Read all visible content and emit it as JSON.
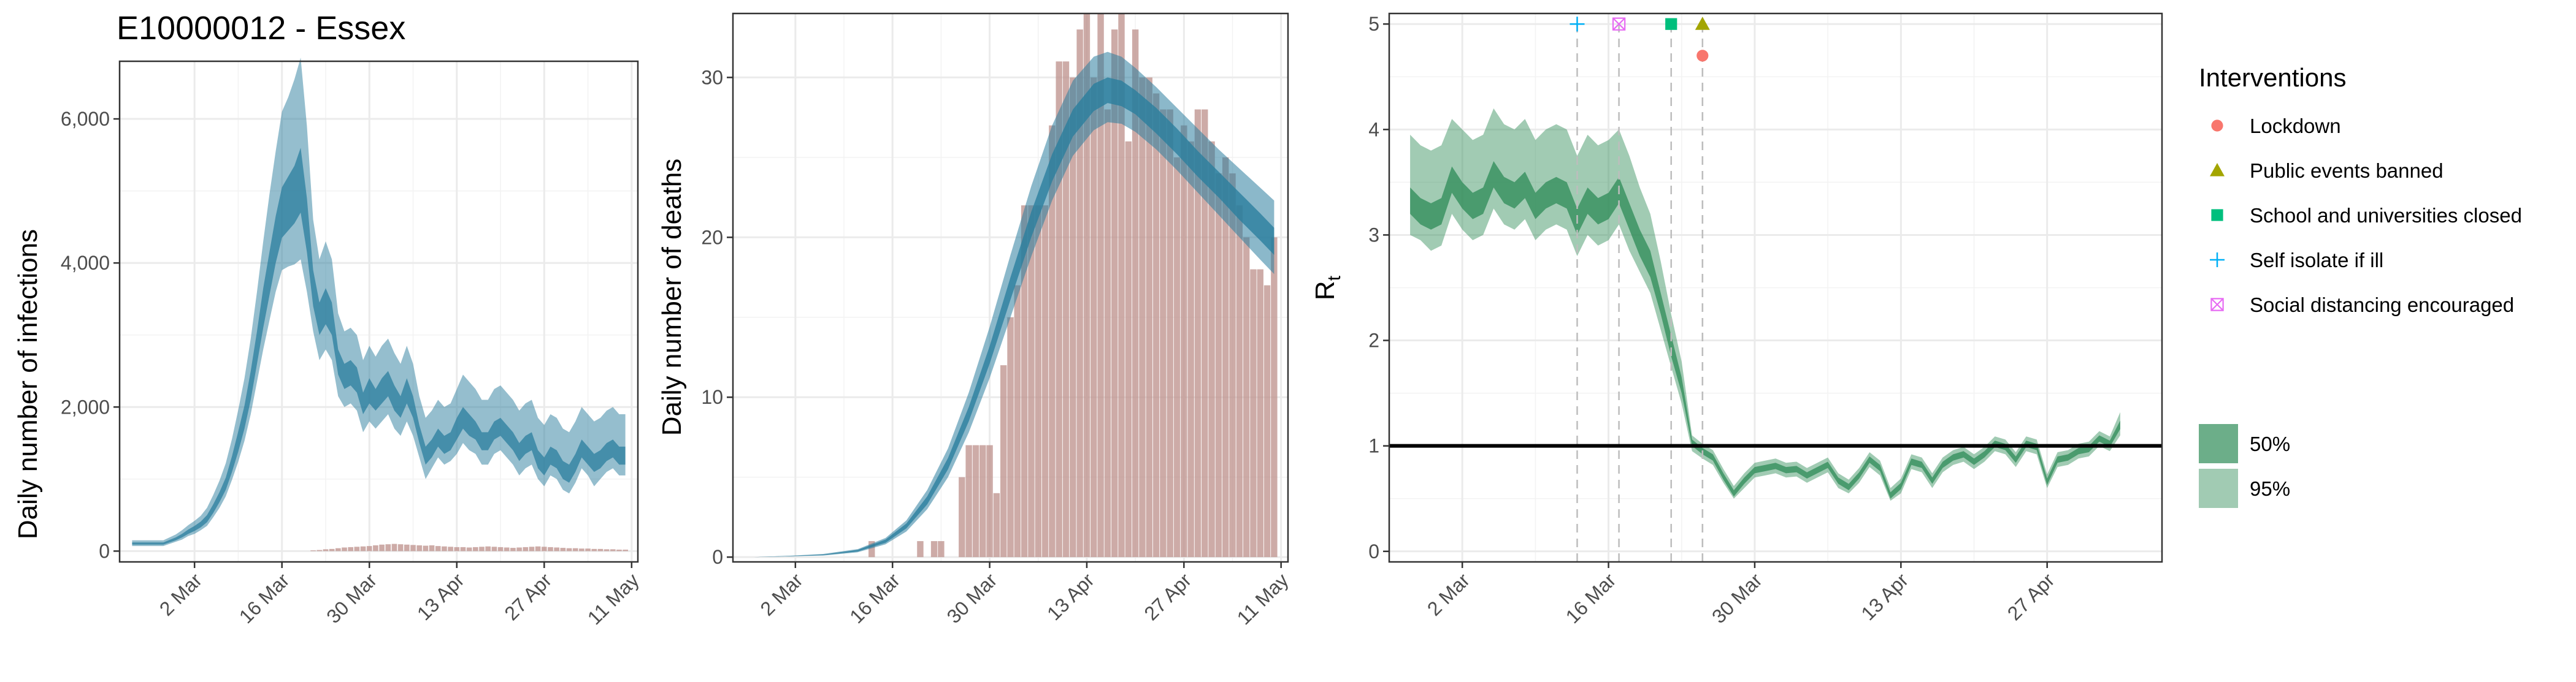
{
  "title": "E10000012 - Essex",
  "colors": {
    "infections_band": "#2b7e9e",
    "deaths_bar": "#bc8f8a",
    "rt_band": "#2e8b57",
    "lockdown": "#f8766d",
    "public_events": "#a3a500",
    "school": "#00bf7d",
    "self_isolate": "#00b0f6",
    "social_distancing": "#e76bf3"
  },
  "chart_data": [
    {
      "type": "area",
      "id": "infections",
      "ylabel": "Daily number of infections",
      "xlabel": "",
      "x_ticks": [
        "2 Mar",
        "16 Mar",
        "30 Mar",
        "13 Apr",
        "27 Apr",
        "11 May"
      ],
      "x_tick_days": [
        1,
        15,
        29,
        43,
        57,
        71
      ],
      "x_range_days": [
        -11,
        72
      ],
      "y_ticks": [
        "0",
        "2,000",
        "4,000",
        "6,000"
      ],
      "y_tick_values": [
        0,
        2000,
        4000,
        6000
      ],
      "ylim": [
        -150,
        6800
      ],
      "x_days": [
        -9,
        -5,
        -4,
        -2,
        -1,
        0,
        1,
        2,
        3,
        4,
        5,
        6,
        7,
        8,
        9,
        10,
        11,
        12,
        13,
        14,
        15,
        16,
        17,
        18,
        19,
        20,
        21,
        22,
        23,
        24,
        25,
        26,
        27,
        28,
        29,
        30,
        31,
        32,
        33,
        34,
        35,
        36,
        37,
        38,
        39,
        40,
        41,
        42,
        43,
        44,
        45,
        46,
        47,
        48,
        49,
        50,
        51,
        52,
        53,
        54,
        55,
        56,
        57,
        58,
        59,
        60,
        61,
        62,
        63,
        64,
        65,
        66,
        67,
        68,
        69,
        70
      ],
      "band95_low": [
        70,
        70,
        70,
        130,
        160,
        210,
        240,
        290,
        350,
        470,
        600,
        760,
        990,
        1240,
        1530,
        1900,
        2350,
        2800,
        3200,
        3600,
        3900,
        3950,
        3980,
        4050,
        3600,
        3050,
        2650,
        2800,
        2650,
        2150,
        2000,
        2050,
        1950,
        1650,
        1800,
        1700,
        1800,
        1900,
        1700,
        1600,
        1800,
        1600,
        1300,
        1000,
        1150,
        1300,
        1200,
        1250,
        1350,
        1500,
        1400,
        1350,
        1200,
        1200,
        1350,
        1400,
        1300,
        1200,
        1050,
        1150,
        1200,
        1000,
        900,
        1050,
        1000,
        850,
        800,
        950,
        1150,
        1050,
        900,
        1000,
        1100,
        1150,
        1050,
        1050
      ],
      "band50_low": [
        90,
        90,
        90,
        150,
        190,
        240,
        280,
        330,
        400,
        530,
        680,
        850,
        1100,
        1380,
        1700,
        2100,
        2600,
        3100,
        3550,
        4000,
        4350,
        4450,
        4550,
        4700,
        4150,
        3400,
        3000,
        3150,
        3000,
        2450,
        2250,
        2300,
        2200,
        1900,
        2050,
        1950,
        2050,
        2150,
        1950,
        1850,
        2050,
        1850,
        1500,
        1200,
        1300,
        1450,
        1350,
        1400,
        1550,
        1700,
        1600,
        1550,
        1400,
        1400,
        1550,
        1600,
        1500,
        1400,
        1250,
        1350,
        1400,
        1150,
        1050,
        1200,
        1150,
        1000,
        950,
        1100,
        1300,
        1200,
        1100,
        1150,
        1250,
        1300,
        1200,
        1200
      ],
      "band50_high": [
        120,
        120,
        120,
        190,
        240,
        300,
        350,
        410,
        500,
        650,
        820,
        1020,
        1320,
        1660,
        2020,
        2500,
        3050,
        3650,
        4150,
        4650,
        5050,
        5200,
        5350,
        5600,
        4900,
        3900,
        3450,
        3650,
        3450,
        2800,
        2600,
        2650,
        2550,
        2200,
        2400,
        2250,
        2400,
        2500,
        2300,
        2150,
        2400,
        2150,
        1750,
        1450,
        1550,
        1700,
        1600,
        1650,
        1850,
        2000,
        1900,
        1800,
        1650,
        1650,
        1800,
        1850,
        1750,
        1650,
        1500,
        1600,
        1650,
        1400,
        1300,
        1450,
        1400,
        1250,
        1200,
        1350,
        1550,
        1450,
        1350,
        1400,
        1500,
        1550,
        1450,
        1450
      ],
      "band95_high": [
        150,
        150,
        150,
        230,
        290,
        360,
        420,
        490,
        600,
        780,
        980,
        1220,
        1560,
        1960,
        2400,
        2950,
        3600,
        4300,
        4950,
        5550,
        6100,
        6300,
        6550,
        6850,
        5900,
        4600,
        4050,
        4300,
        4050,
        3300,
        3050,
        3100,
        3000,
        2650,
        2850,
        2700,
        2850,
        2950,
        2750,
        2600,
        2850,
        2600,
        2150,
        1850,
        1950,
        2100,
        2000,
        2050,
        2250,
        2450,
        2350,
        2250,
        2100,
        2100,
        2250,
        2300,
        2200,
        2100,
        1950,
        2050,
        2100,
        1850,
        1750,
        1900,
        1850,
        1700,
        1650,
        1800,
        2000,
        1900,
        1800,
        1850,
        1950,
        2000,
        1900,
        1900
      ],
      "observed_days": [
        20,
        21,
        22,
        23,
        24,
        25,
        26,
        27,
        28,
        29,
        30,
        31,
        32,
        33,
        34,
        35,
        36,
        37,
        38,
        39,
        40,
        41,
        42,
        43,
        44,
        45,
        46,
        47,
        48,
        49,
        50,
        51,
        52,
        53,
        54,
        55,
        56,
        57,
        58,
        59,
        60,
        61,
        62,
        63,
        64,
        65,
        66,
        67,
        68,
        69,
        70
      ],
      "observed_values": [
        10,
        15,
        25,
        30,
        40,
        50,
        55,
        60,
        65,
        70,
        80,
        90,
        95,
        100,
        95,
        90,
        85,
        80,
        75,
        80,
        70,
        65,
        60,
        55,
        55,
        50,
        55,
        60,
        65,
        60,
        55,
        50,
        45,
        50,
        55,
        60,
        65,
        60,
        55,
        50,
        45,
        40,
        40,
        35,
        35,
        30,
        30,
        25,
        25,
        20,
        20
      ]
    },
    {
      "type": "bar",
      "id": "deaths",
      "ylabel": "Daily number of deaths",
      "xlabel": "",
      "x_ticks": [
        "2 Mar",
        "16 Mar",
        "30 Mar",
        "13 Apr",
        "27 Apr",
        "11 May"
      ],
      "x_tick_days": [
        1,
        15,
        29,
        43,
        57,
        71
      ],
      "x_range_days": [
        -8,
        72
      ],
      "y_ticks": [
        "0",
        "10",
        "20",
        "30"
      ],
      "y_tick_values": [
        0,
        10,
        20,
        30
      ],
      "ylim": [
        -0.3,
        34
      ],
      "bar_days": [
        12,
        13,
        14,
        15,
        16,
        17,
        18,
        19,
        20,
        21,
        22,
        23,
        24,
        25,
        26,
        27,
        28,
        29,
        30,
        31,
        32,
        33,
        34,
        35,
        36,
        37,
        38,
        39,
        40,
        41,
        42,
        43,
        44,
        45,
        46,
        47,
        48,
        49,
        50,
        51,
        52,
        53,
        54,
        55,
        56,
        57,
        58,
        59,
        60,
        61,
        62,
        63,
        64,
        65,
        66,
        67,
        68,
        69,
        70
      ],
      "bar_values": [
        1,
        0,
        0,
        0,
        0,
        0,
        0,
        1,
        0,
        1,
        1,
        0,
        0,
        5,
        7,
        7,
        7,
        7,
        4,
        12,
        15,
        17,
        22,
        22,
        22,
        22,
        27,
        31,
        31,
        30,
        33,
        34,
        30,
        34,
        28,
        33,
        34,
        26,
        33,
        30,
        30,
        29,
        28,
        28,
        25,
        27,
        26,
        28,
        28,
        26,
        24,
        25,
        24,
        22,
        20,
        18,
        18,
        17,
        20
      ],
      "band_days": [
        -5,
        0,
        5,
        10,
        14,
        17,
        20,
        23,
        26,
        29,
        32,
        35,
        38,
        41,
        44,
        46,
        48,
        50,
        53,
        56,
        59,
        62,
        65,
        68,
        70
      ],
      "band95_low": [
        0,
        0.05,
        0.1,
        0.3,
        0.8,
        1.6,
        3,
        5,
        7.8,
        11.2,
        15,
        18.8,
        22.3,
        25.1,
        26.7,
        27.2,
        27.1,
        26.6,
        25.5,
        24.2,
        22.8,
        21.4,
        20,
        18.6,
        17.7
      ],
      "band50_low": [
        0,
        0.05,
        0.12,
        0.35,
        0.9,
        1.8,
        3.3,
        5.5,
        8.5,
        12.1,
        16.1,
        20,
        23.5,
        26.3,
        27.9,
        28.4,
        28.2,
        27.7,
        26.5,
        25.2,
        23.8,
        22.5,
        21.1,
        19.8,
        18.9
      ],
      "band50_high": [
        0,
        0.07,
        0.16,
        0.45,
        1.1,
        2.1,
        3.8,
        6.2,
        9.4,
        13.2,
        17.5,
        21.6,
        25.2,
        28,
        29.6,
        30,
        29.8,
        29.2,
        28.1,
        26.8,
        25.4,
        24.1,
        22.8,
        21.5,
        20.6
      ],
      "band95_high": [
        0,
        0.08,
        0.2,
        0.5,
        1.2,
        2.3,
        4.2,
        6.8,
        10.3,
        14.4,
        18.9,
        23.2,
        27,
        29.8,
        31.3,
        31.6,
        31.3,
        30.6,
        29.4,
        28.1,
        26.8,
        25.5,
        24.3,
        23.1,
        22.3
      ]
    },
    {
      "type": "area",
      "id": "rt",
      "ylabel": "R",
      "ylabel_sub": "t",
      "xlabel": "",
      "x_ticks": [
        "2 Mar",
        "16 Mar",
        "30 Mar",
        "13 Apr",
        "27 Apr"
      ],
      "x_tick_days": [
        1,
        15,
        29,
        43,
        57
      ],
      "x_range_days": [
        -6,
        68
      ],
      "y_ticks": [
        "0",
        "1",
        "2",
        "3",
        "4",
        "5"
      ],
      "y_tick_values": [
        0,
        1,
        2,
        3,
        4,
        5
      ],
      "ylim": [
        -0.1,
        5.1
      ],
      "reference_line": 1,
      "x_days": [
        -4,
        -3,
        -2,
        -1,
        0,
        1,
        2,
        3,
        4,
        5,
        6,
        7,
        8,
        9,
        10,
        11,
        12,
        13,
        14,
        15,
        16,
        17,
        18,
        19,
        20,
        21,
        22,
        23,
        24,
        25,
        26,
        27,
        28,
        29,
        30,
        31,
        32,
        33,
        34,
        35,
        36,
        37,
        38,
        39,
        40,
        41,
        42,
        43,
        44,
        45,
        46,
        47,
        48,
        49,
        50,
        51,
        52,
        53,
        54,
        55,
        56,
        57,
        58,
        59,
        60,
        61,
        62,
        63,
        64
      ],
      "band95_low": [
        3.0,
        2.95,
        2.85,
        2.9,
        3.2,
        3.05,
        2.95,
        3.0,
        3.25,
        3.1,
        3.05,
        3.15,
        2.95,
        3.05,
        3.1,
        3.05,
        2.8,
        3.0,
        2.9,
        2.95,
        3.1,
        2.85,
        2.65,
        2.45,
        2.1,
        1.75,
        1.4,
        0.95,
        0.88,
        0.82,
        0.65,
        0.5,
        0.6,
        0.7,
        0.72,
        0.74,
        0.7,
        0.71,
        0.65,
        0.7,
        0.75,
        0.6,
        0.55,
        0.65,
        0.8,
        0.72,
        0.48,
        0.55,
        0.78,
        0.75,
        0.6,
        0.75,
        0.82,
        0.85,
        0.78,
        0.85,
        0.95,
        0.92,
        0.8,
        0.95,
        0.92,
        0.6,
        0.8,
        0.82,
        0.88,
        0.9,
        1.0,
        0.95,
        1.1
      ],
      "band50_low": [
        3.2,
        3.1,
        3.05,
        3.1,
        3.4,
        3.25,
        3.15,
        3.2,
        3.45,
        3.3,
        3.25,
        3.35,
        3.15,
        3.25,
        3.3,
        3.25,
        3.0,
        3.2,
        3.1,
        3.15,
        3.3,
        3.05,
        2.8,
        2.6,
        2.25,
        1.85,
        1.5,
        1.0,
        0.92,
        0.86,
        0.68,
        0.52,
        0.64,
        0.74,
        0.76,
        0.78,
        0.74,
        0.75,
        0.69,
        0.74,
        0.79,
        0.64,
        0.58,
        0.69,
        0.84,
        0.76,
        0.5,
        0.59,
        0.82,
        0.79,
        0.64,
        0.79,
        0.86,
        0.89,
        0.82,
        0.89,
        0.99,
        0.96,
        0.84,
        0.99,
        0.96,
        0.63,
        0.84,
        0.86,
        0.92,
        0.94,
        1.04,
        0.99,
        1.16
      ],
      "band50_high": [
        3.45,
        3.35,
        3.3,
        3.35,
        3.65,
        3.5,
        3.4,
        3.45,
        3.7,
        3.55,
        3.5,
        3.6,
        3.4,
        3.5,
        3.55,
        3.5,
        3.25,
        3.45,
        3.35,
        3.4,
        3.55,
        3.3,
        3.05,
        2.85,
        2.45,
        2.05,
        1.65,
        1.06,
        0.98,
        0.92,
        0.74,
        0.58,
        0.7,
        0.8,
        0.82,
        0.84,
        0.8,
        0.81,
        0.75,
        0.8,
        0.85,
        0.7,
        0.64,
        0.75,
        0.9,
        0.82,
        0.56,
        0.65,
        0.88,
        0.85,
        0.7,
        0.85,
        0.92,
        0.95,
        0.88,
        0.95,
        1.05,
        1.02,
        0.9,
        1.05,
        1.02,
        0.69,
        0.9,
        0.92,
        0.98,
        1.0,
        1.1,
        1.05,
        1.24
      ],
      "band95_high": [
        3.95,
        3.85,
        3.8,
        3.85,
        4.1,
        4.0,
        3.9,
        3.95,
        4.2,
        4.05,
        4.0,
        4.1,
        3.9,
        4.0,
        4.05,
        4.0,
        3.75,
        3.95,
        3.85,
        3.9,
        4.0,
        3.75,
        3.45,
        3.2,
        2.75,
        2.25,
        1.8,
        1.1,
        1.02,
        0.96,
        0.78,
        0.62,
        0.74,
        0.84,
        0.86,
        0.88,
        0.84,
        0.85,
        0.79,
        0.84,
        0.89,
        0.74,
        0.68,
        0.79,
        0.94,
        0.86,
        0.6,
        0.69,
        0.92,
        0.89,
        0.74,
        0.89,
        0.96,
        0.99,
        0.92,
        0.99,
        1.09,
        1.06,
        0.94,
        1.09,
        1.06,
        0.73,
        0.94,
        0.96,
        1.02,
        1.04,
        1.14,
        1.09,
        1.32
      ],
      "interventions": [
        {
          "label": "Self isolate if ill",
          "day": 12,
          "shape": "plus",
          "marker_y": 5.0
        },
        {
          "label": "Social distancing encouraged",
          "day": 16,
          "shape": "square-x",
          "marker_y": 5.0
        },
        {
          "label": "School and universities closed",
          "day": 21,
          "shape": "square",
          "marker_y": 5.0
        },
        {
          "label": "Public events banned",
          "day": 24,
          "shape": "triangle",
          "marker_y": 5.0
        },
        {
          "label": "Lockdown",
          "day": 24,
          "shape": "circle",
          "marker_y": 4.7
        }
      ]
    }
  ],
  "legend": {
    "title": "Interventions",
    "items": [
      {
        "label": "Lockdown",
        "shape": "circle",
        "color": "#f8766d"
      },
      {
        "label": "Public events banned",
        "shape": "triangle",
        "color": "#a3a500"
      },
      {
        "label": "School and universities closed",
        "shape": "square",
        "color": "#00bf7d"
      },
      {
        "label": "Self isolate if ill",
        "shape": "plus",
        "color": "#00b0f6"
      },
      {
        "label": "Social distancing encouraged",
        "shape": "square-x",
        "color": "#e76bf3"
      }
    ],
    "intervals": [
      {
        "label": "50%",
        "opacity": 0.7
      },
      {
        "label": "95%",
        "opacity": 0.45
      }
    ]
  }
}
